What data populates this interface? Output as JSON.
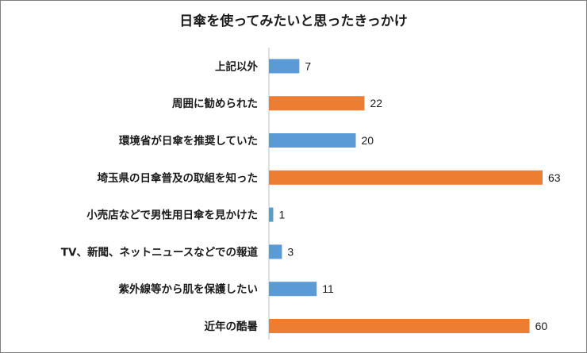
{
  "chart_data": {
    "type": "bar",
    "orientation": "horizontal",
    "title": "日傘を使ってみたいと思ったきっかけ",
    "categories": [
      "上記以外",
      "周囲に勧められた",
      "環境省が日傘を推奨していた",
      "埼玉県の日傘普及の取組を知った",
      "小売店などで男性用日傘を見かけた",
      "TV、新聞、ネットニュースなどでの報道",
      "紫外線等から肌を保護したい",
      "近年の酷暑"
    ],
    "values": [
      7,
      22,
      20,
      63,
      1,
      3,
      11,
      60
    ],
    "colors": [
      "#5b9bd5",
      "#ed7d31",
      "#5b9bd5",
      "#ed7d31",
      "#5b9bd5",
      "#5b9bd5",
      "#5b9bd5",
      "#ed7d31"
    ],
    "xlim": [
      0,
      65
    ],
    "grid": false,
    "legend": "none"
  }
}
